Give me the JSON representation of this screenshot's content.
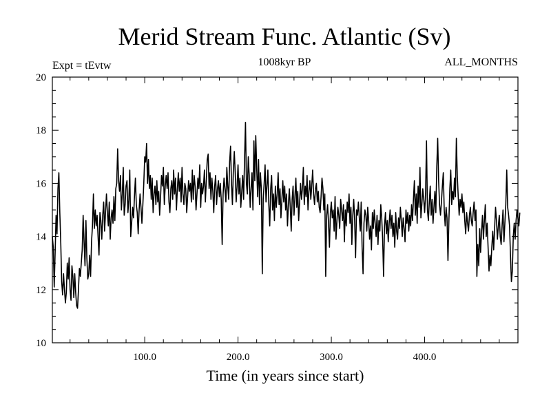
{
  "chart_data": {
    "type": "line",
    "title": "Merid Stream Func. Atlantic (Sv)",
    "subtitle_left": "Expt = tEvtw",
    "subtitle_center": "1008kyr BP",
    "subtitle_right": "ALL_MONTHS",
    "xlabel": "Time (in years since start)",
    "ylabel": "",
    "xlim": [
      1,
      500
    ],
    "ylim": [
      10,
      20
    ],
    "x_ticks": [
      100,
      200,
      300,
      400
    ],
    "x_tick_labels": [
      "100.0",
      "200.0",
      "300.0",
      "400.0"
    ],
    "y_ticks": [
      10,
      12,
      14,
      16,
      18,
      20
    ],
    "y_tick_labels": [
      "10",
      "12",
      "14",
      "16",
      "18",
      "20"
    ],
    "line_color": "#000000",
    "series": [
      {
        "name": "Merid Stream Func. Atlantic",
        "x_start": 1,
        "x_step": 1,
        "values": [
          14.0,
          13.6,
          12.1,
          13.4,
          14.8,
          14.1,
          15.8,
          16.4,
          14.9,
          13.8,
          12.3,
          11.8,
          12.6,
          12.0,
          11.5,
          11.9,
          13.0,
          12.4,
          13.2,
          12.0,
          11.6,
          12.9,
          12.5,
          11.7,
          12.6,
          11.9,
          11.4,
          11.3,
          12.0,
          12.8,
          12.5,
          13.0,
          13.5,
          14.8,
          13.8,
          12.9,
          14.6,
          13.2,
          12.4,
          12.6,
          13.3,
          12.5,
          13.8,
          14.4,
          15.6,
          14.3,
          15.0,
          14.4,
          14.8,
          14.0,
          13.3,
          14.9,
          14.6,
          13.9,
          14.8,
          15.3,
          14.2,
          14.9,
          15.6,
          14.9,
          14.4,
          15.3,
          13.9,
          14.7,
          15.0,
          14.5,
          15.5,
          14.6,
          15.8,
          16.0,
          17.3,
          16.1,
          15.7,
          16.3,
          15.0,
          15.6,
          16.6,
          14.8,
          15.2,
          15.9,
          16.1,
          14.9,
          15.4,
          16.5,
          14.0,
          14.5,
          15.1,
          14.7,
          15.5,
          16.2,
          15.2,
          14.9,
          14.1,
          15.0,
          15.6,
          15.1,
          14.5,
          15.2,
          16.0,
          17.0,
          16.8,
          17.5,
          16.0,
          16.9,
          15.8,
          16.3,
          15.4,
          16.2,
          14.9,
          15.6,
          15.9,
          15.2,
          16.1,
          15.3,
          15.7,
          14.8,
          15.5,
          16.3,
          15.9,
          16.6,
          15.2,
          15.9,
          16.3,
          15.8,
          16.4,
          15.3,
          14.9,
          15.8,
          16.1,
          15.4,
          16.5,
          15.6,
          16.2,
          15.0,
          15.8,
          16.4,
          15.7,
          16.2,
          15.3,
          16.6,
          15.6,
          15.2,
          16.0,
          15.8,
          14.9,
          15.5,
          16.1,
          15.7,
          16.0,
          15.3,
          16.5,
          15.4,
          16.3,
          15.9,
          15.0,
          15.6,
          16.2,
          15.8,
          16.7,
          15.1,
          16.0,
          15.6,
          15.9,
          16.5,
          15.3,
          16.1,
          16.9,
          17.1,
          15.8,
          16.4,
          15.4,
          16.2,
          15.7,
          14.9,
          15.9,
          16.3,
          15.2,
          15.8,
          16.1,
          15.5,
          16.0,
          15.4,
          13.7,
          15.6,
          16.2,
          15.8,
          15.3,
          16.6,
          15.9,
          15.4,
          16.8,
          17.4,
          16.0,
          15.2,
          16.5,
          17.2,
          16.4,
          15.3,
          15.9,
          16.7,
          15.6,
          16.2,
          15.1,
          15.7,
          16.3,
          15.4,
          16.9,
          18.3,
          16.0,
          15.6,
          17.0,
          16.3,
          15.1,
          15.8,
          16.4,
          15.0,
          17.6,
          16.1,
          17.8,
          16.6,
          15.5,
          16.9,
          15.2,
          16.4,
          15.8,
          12.6,
          15.4,
          16.0,
          16.7,
          15.3,
          15.9,
          16.5,
          15.2,
          14.4,
          15.8,
          16.3,
          15.0,
          15.6,
          14.6,
          15.9,
          15.1,
          15.6,
          16.4,
          15.2,
          15.8,
          14.7,
          15.4,
          16.1,
          15.3,
          15.9,
          15.0,
          15.6,
          14.4,
          15.2,
          15.8,
          15.1,
          14.2,
          15.4,
          15.9,
          14.8,
          15.5,
          16.2,
          15.1,
          15.7,
          14.6,
          15.3,
          16.0,
          15.4,
          15.8,
          16.6,
          15.2,
          15.9,
          15.5,
          16.3,
          15.0,
          15.7,
          16.1,
          15.4,
          15.9,
          16.5,
          15.6,
          15.2,
          15.8,
          16.0,
          15.3,
          15.7,
          15.1,
          14.9,
          15.5,
          16.2,
          15.8,
          15.0,
          15.6,
          12.5,
          14.8,
          15.2,
          14.5,
          13.6,
          14.9,
          15.3,
          14.7,
          15.0,
          14.2,
          15.5,
          13.9,
          14.6,
          15.1,
          14.8,
          14.3,
          15.4,
          15.0,
          14.6,
          15.2,
          13.8,
          15.0,
          14.4,
          15.3,
          14.9,
          15.6,
          14.5,
          15.1,
          13.7,
          14.8,
          15.4,
          14.6,
          13.2,
          15.0,
          14.8,
          15.3,
          14.7,
          14.2,
          15.3,
          13.6,
          12.6,
          14.5,
          15.0,
          14.8,
          14.2,
          15.1,
          14.6,
          13.9,
          14.4,
          13.5,
          14.9,
          14.3,
          15.0,
          14.5,
          14.0,
          14.8,
          13.7,
          14.6,
          14.2,
          15.2,
          14.7,
          13.9,
          12.5,
          14.4,
          14.9,
          14.1,
          14.6,
          13.8,
          14.5,
          15.0,
          14.3,
          14.8,
          14.0,
          14.5,
          13.6,
          14.9,
          14.2,
          13.9,
          14.7,
          14.3,
          15.1,
          14.6,
          14.0,
          14.7,
          14.3,
          13.8,
          15.0,
          14.5,
          14.9,
          14.2,
          14.8,
          14.4,
          15.2,
          14.6,
          15.4,
          16.1,
          14.8,
          15.6,
          14.5,
          15.9,
          15.1,
          16.6,
          14.7,
          15.2,
          15.8,
          15.4,
          14.9,
          15.6,
          17.6,
          15.0,
          14.6,
          15.3,
          15.9,
          14.8,
          15.4,
          14.5,
          15.1,
          15.7,
          14.9,
          16.6,
          17.7,
          16.1,
          15.2,
          14.8,
          15.3,
          15.9,
          16.4,
          15.0,
          14.4,
          15.1,
          14.7,
          13.1,
          14.6,
          15.8,
          16.5,
          15.2,
          15.7,
          15.4,
          16.2,
          15.5,
          17.7,
          16.3,
          15.5,
          14.8,
          15.4,
          15.1,
          15.6,
          14.9,
          15.3,
          14.6,
          14.1,
          14.9,
          14.5,
          14.2,
          14.8,
          15.1,
          14.6,
          14.4,
          14.9,
          15.3,
          14.6,
          15.0,
          12.5,
          13.7,
          12.9,
          14.3,
          13.4,
          14.2,
          14.8,
          13.9,
          14.6,
          15.2,
          14.0,
          14.5,
          13.6,
          12.7,
          13.3,
          12.9,
          13.6,
          14.2,
          13.5,
          14.3,
          15.1,
          14.6,
          13.9,
          14.4,
          14.8,
          14.0,
          13.7,
          14.4,
          15.0,
          13.8,
          14.5,
          15.2,
          16.5,
          15.1,
          14.8,
          14.4,
          13.3,
          12.3,
          12.7,
          14.0,
          14.5,
          13.9,
          14.6,
          15.0,
          14.7,
          14.4,
          14.9
        ]
      }
    ]
  }
}
